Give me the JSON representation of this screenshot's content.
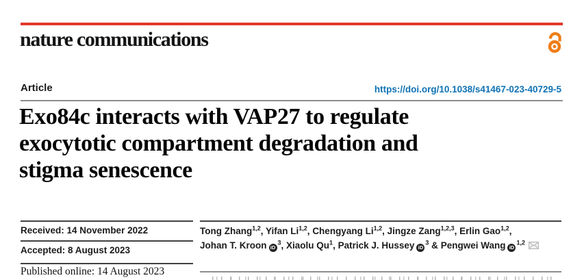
{
  "brand": {
    "wordmark": "nature communications"
  },
  "colors": {
    "red_bar": "#e2392b",
    "open_access_orange": "#ee7d17",
    "doi_blue": "#0e72b5",
    "rule_gray": "#8d8d8d",
    "rule_dark": "#414141",
    "text_dark": "#161616"
  },
  "icons": {
    "open_access": "open-access-icon",
    "orcid": "orcid-icon",
    "mail": "mail-icon"
  },
  "header": {
    "article_label": "Article",
    "doi": "https://doi.org/10.1038/s41467-023-40729-5"
  },
  "title": {
    "lines": [
      "Exo84c interacts with VAP27 to regulate",
      "exocytotic compartment degradation and",
      "stigma senescence"
    ]
  },
  "dates": {
    "received": "Received: 14 November 2022",
    "accepted": "Accepted: 8 August 2023",
    "published": "Published online: 14 August 2023"
  },
  "authors": {
    "lines": [
      [
        {
          "name": "Tong Zhang",
          "sup": "1,2",
          "sep": ", "
        },
        {
          "name": "Yifan Li",
          "sup": "1,2",
          "sep": ", "
        },
        {
          "name": "Chengyang Li",
          "sup": "1,2",
          "sep": ", "
        },
        {
          "name": "Jingze Zang",
          "sup": "1,2,3",
          "sep": ", "
        },
        {
          "name": "Erlin Gao",
          "sup": "1,2",
          "sep": ","
        }
      ],
      [
        {
          "name": "Johan T. Kroon",
          "orcid": true,
          "sup": "3",
          "sep": ", "
        },
        {
          "name": "Xiaolu Qu",
          "sup": "1",
          "sep": ", "
        },
        {
          "name": "Patrick J. Hussey",
          "orcid": true,
          "sup": "3",
          "sep": " & "
        },
        {
          "name": "Pengwei Wang",
          "orcid": true,
          "sup": "1,2",
          "sep": "",
          "mail": true
        }
      ]
    ]
  }
}
